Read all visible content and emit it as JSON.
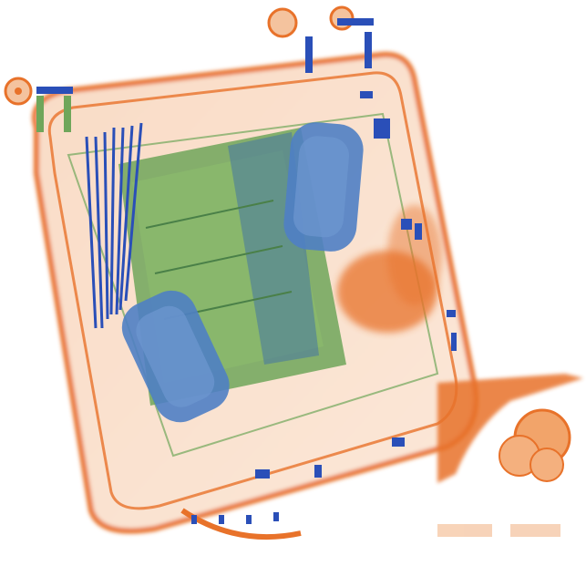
{
  "image": {
    "kind": "x-ray baggage scan",
    "background": "#ffffff",
    "colors": {
      "organic": "#e8722a",
      "organic_light": "#f6c9a8",
      "mixed": "#6fa65a",
      "inorganic": "#2a4fb8"
    },
    "items": [
      {
        "name": "bag-shell",
        "material": "organic"
      },
      {
        "name": "bag-handle-left",
        "material": "mixed"
      },
      {
        "name": "bag-handle-right",
        "material": "mixed"
      },
      {
        "name": "laptop-board",
        "material": "mixed"
      },
      {
        "name": "cylinder-canister-top",
        "material": "inorganic"
      },
      {
        "name": "cylinder-canister-bottom",
        "material": "inorganic"
      },
      {
        "name": "cable-bundle",
        "material": "inorganic"
      },
      {
        "name": "wheel-left",
        "material": "organic"
      },
      {
        "name": "wheel-right",
        "material": "organic"
      },
      {
        "name": "bag-corner-pad",
        "material": "organic"
      }
    ]
  }
}
